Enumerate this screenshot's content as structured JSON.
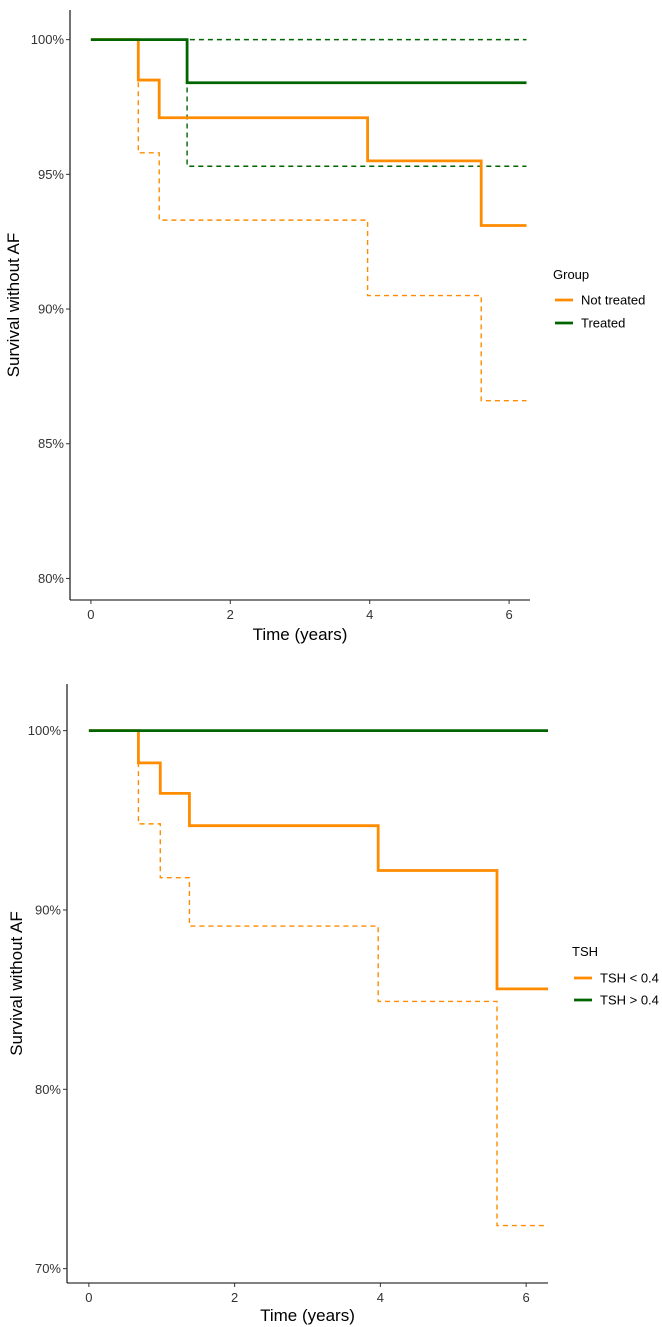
{
  "colors": {
    "orange": "#FF8C00",
    "green": "#006400"
  },
  "chart_data": [
    {
      "type": "line",
      "subtype": "step",
      "title": "",
      "xlabel": "Time (years)",
      "ylabel": "Survival without AF",
      "xlim": [
        -0.3,
        6.3
      ],
      "ylim": [
        79.2,
        101.1
      ],
      "x_ticks": [
        0,
        2,
        4,
        6
      ],
      "x_tick_labels": [
        "0",
        "2",
        "4",
        "6"
      ],
      "y_ticks": [
        80,
        85,
        90,
        95,
        100
      ],
      "y_tick_labels": [
        "80%",
        "85%",
        "90%",
        "95%",
        "100%"
      ],
      "legend": {
        "title": "Group",
        "position": "right",
        "labels": [
          "Not treated",
          "Treated"
        ]
      },
      "series": [
        {
          "name": "Not treated",
          "color": "orange",
          "x": [
            0,
            0.68,
            0.98,
            3.97,
            5.6,
            6.25
          ],
          "y": [
            100,
            98.5,
            97.1,
            95.5,
            93.1,
            93.1
          ],
          "ci_lower": [
            100,
            95.8,
            93.3,
            90.5,
            86.6,
            86.6
          ],
          "ci_upper": []
        },
        {
          "name": "Treated",
          "color": "green",
          "x": [
            0,
            1.38,
            6.25
          ],
          "y": [
            100,
            98.4,
            98.4
          ],
          "ci_lower": [
            100,
            95.3,
            95.3
          ],
          "ci_upper": [
            100,
            100,
            100
          ]
        }
      ]
    },
    {
      "type": "line",
      "subtype": "step",
      "title": "",
      "xlabel": "Time (years)",
      "ylabel": "Survival without AF",
      "xlim": [
        -0.3,
        6.3
      ],
      "ylim": [
        69.2,
        102.6
      ],
      "x_ticks": [
        0,
        2,
        4,
        6
      ],
      "x_tick_labels": [
        "0",
        "2",
        "4",
        "6"
      ],
      "y_ticks": [
        70,
        80,
        90,
        100
      ],
      "y_tick_labels": [
        "70%",
        "80%",
        "90%",
        "100%"
      ],
      "legend": {
        "title": "TSH",
        "position": "right",
        "labels": [
          "TSH < 0.4",
          "TSH > 0.4"
        ]
      },
      "series": [
        {
          "name": "TSH < 0.4",
          "color": "orange",
          "x": [
            0,
            0.68,
            0.98,
            1.38,
            3.97,
            5.6,
            6.3
          ],
          "y": [
            100,
            98.2,
            96.5,
            94.7,
            92.2,
            85.6,
            85.6
          ],
          "ci_lower": [
            100,
            94.8,
            91.8,
            89.1,
            84.9,
            72.4,
            72.4
          ],
          "ci_upper": []
        },
        {
          "name": "TSH > 0.4",
          "color": "green",
          "x": [
            0,
            6.3
          ],
          "y": [
            100,
            100
          ],
          "ci_lower": [],
          "ci_upper": []
        }
      ]
    }
  ]
}
